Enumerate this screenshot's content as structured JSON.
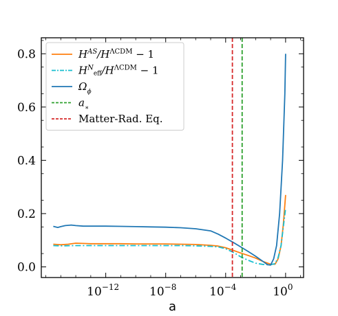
{
  "chart_data": {
    "type": "line",
    "title": "",
    "xlabel": "a",
    "ylabel": "",
    "xscale": "log",
    "xlim_log10": [
      -16.3,
      1.2
    ],
    "ylim": [
      -0.04,
      0.86
    ],
    "grid": false,
    "legend_placement": "top-left",
    "x_ticks": [
      {
        "exp": -12,
        "base": "10",
        "sup": "−12"
      },
      {
        "exp": -8,
        "base": "10",
        "sup": "−8"
      },
      {
        "exp": -4,
        "base": "10",
        "sup": "−4"
      },
      {
        "exp": 0,
        "base": "10",
        "sup": "0"
      }
    ],
    "y_ticks": [
      {
        "value": 0.0,
        "label": "0.0"
      },
      {
        "value": 0.2,
        "label": "0.2"
      },
      {
        "value": 0.4,
        "label": "0.4"
      },
      {
        "value": 0.6,
        "label": "0.6"
      },
      {
        "value": 0.8,
        "label": "0.8"
      }
    ],
    "series": [
      {
        "key": "h_as",
        "legend": {
          "main": "H",
          "sup1": "AS",
          "mid": "/H",
          "sup2": "ΛCDM",
          "tail": " − 1"
        },
        "color": "#ff7f0e",
        "dash": "solid",
        "log10_x": [
          -15.5,
          -15,
          -14.5,
          -14,
          -13.5,
          -13,
          -12.5,
          -12,
          -11,
          -10,
          -9,
          -8,
          -7,
          -6,
          -5,
          -4.5,
          -4,
          -3.5,
          -3,
          -2.5,
          -2,
          -1.5,
          -1,
          -0.7,
          -0.5,
          -0.3,
          -0.15,
          0
        ],
        "y": [
          0.085,
          0.083,
          0.085,
          0.089,
          0.088,
          0.087,
          0.087,
          0.087,
          0.087,
          0.086,
          0.086,
          0.086,
          0.085,
          0.084,
          0.081,
          0.078,
          0.072,
          0.062,
          0.052,
          0.043,
          0.033,
          0.02,
          0.01,
          0.01,
          0.03,
          0.08,
          0.16,
          0.27
        ]
      },
      {
        "key": "h_neff",
        "legend": {
          "main": "H",
          "sup1": "N",
          "sub1": "eff",
          "mid": "/H",
          "sup2": "ΛCDM",
          "tail": " − 1"
        },
        "color": "#17becf",
        "dash": "dashdot",
        "log10_x": [
          -15.5,
          -15,
          -14,
          -13,
          -12,
          -11,
          -10,
          -9,
          -8,
          -7,
          -6,
          -5,
          -4.5,
          -4,
          -3.5,
          -3,
          -2.5,
          -2,
          -1.5,
          -1,
          -0.7,
          -0.5,
          -0.3,
          -0.15,
          0
        ],
        "y": [
          0.08,
          0.079,
          0.08,
          0.08,
          0.08,
          0.08,
          0.08,
          0.08,
          0.08,
          0.08,
          0.079,
          0.077,
          0.075,
          0.068,
          0.055,
          0.038,
          0.025,
          0.014,
          0.009,
          0.008,
          0.012,
          0.035,
          0.08,
          0.15,
          0.22
        ]
      },
      {
        "key": "omega_phi",
        "legend": {
          "main": "Ω",
          "sub1": "ϕ"
        },
        "color": "#1f77b4",
        "dash": "solid",
        "log10_x": [
          -15.5,
          -15.2,
          -15,
          -14.7,
          -14.3,
          -14,
          -13.5,
          -13,
          -12,
          -11,
          -10,
          -9,
          -8,
          -7,
          -6,
          -5,
          -4.5,
          -4,
          -3.5,
          -3,
          -2.5,
          -2,
          -1.5,
          -1.2,
          -1,
          -0.8,
          -0.6,
          -0.4,
          -0.2,
          -0.05,
          0
        ],
        "y": [
          0.152,
          0.148,
          0.151,
          0.155,
          0.157,
          0.155,
          0.153,
          0.153,
          0.153,
          0.152,
          0.151,
          0.15,
          0.149,
          0.147,
          0.143,
          0.135,
          0.123,
          0.108,
          0.092,
          0.075,
          0.058,
          0.04,
          0.02,
          0.008,
          0.007,
          0.03,
          0.08,
          0.2,
          0.4,
          0.65,
          0.8
        ]
      }
    ],
    "vlines": [
      {
        "key": "a_star",
        "legend": {
          "main": "a",
          "sub1": "∗"
        },
        "log10_x": -2.9,
        "color": "#2ca02c",
        "dash": "dashed"
      },
      {
        "key": "mr_eq",
        "legend": {
          "main": "Matter-Rad. Eq."
        },
        "log10_x": -3.55,
        "color": "#d62728",
        "dash": "dashed"
      }
    ]
  }
}
